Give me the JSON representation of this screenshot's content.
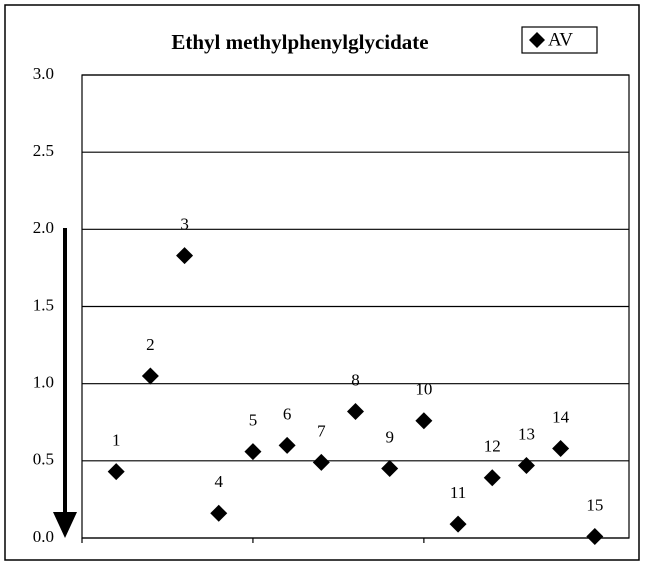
{
  "chart_data": {
    "type": "scatter",
    "title": "Ethyl methylphenylglycidate",
    "x": [
      1,
      2,
      3,
      4,
      5,
      6,
      7,
      8,
      9,
      10,
      11,
      12,
      13,
      14,
      15
    ],
    "series": [
      {
        "name": "AV",
        "color": "#000000",
        "marker": "diamond",
        "values": [
          0.43,
          1.05,
          1.83,
          0.16,
          0.56,
          0.6,
          0.49,
          0.82,
          0.45,
          0.76,
          0.09,
          0.39,
          0.47,
          0.58,
          0.01
        ]
      }
    ],
    "xlim": [
      0,
      16
    ],
    "xticks": [
      0,
      5,
      10,
      15
    ],
    "ylim": [
      0,
      3
    ],
    "yticks": [
      {
        "value": 0,
        "label": "0.0"
      },
      {
        "value": 0.5,
        "label": "0.5"
      },
      {
        "value": 1,
        "label": "1.0"
      },
      {
        "value": 1.5,
        "label": "1.5"
      },
      {
        "value": 2,
        "label": "2.0"
      },
      {
        "value": 2.5,
        "label": "2.5"
      },
      {
        "value": 3,
        "label": "3.0"
      }
    ],
    "grid": true,
    "legend": "upper right"
  }
}
